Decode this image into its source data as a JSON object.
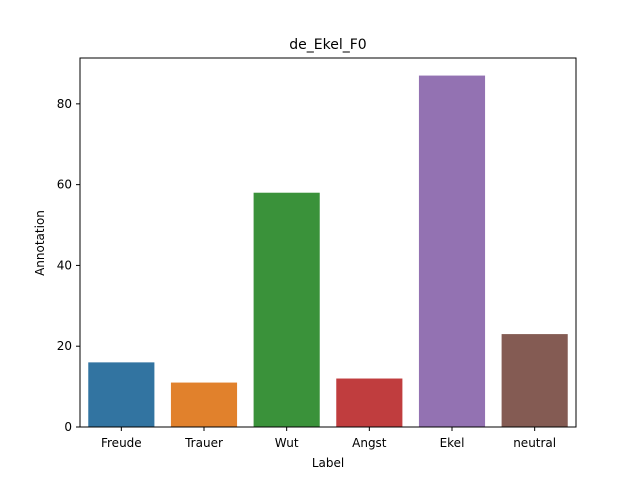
{
  "chart_data": {
    "type": "bar",
    "title": "de_Ekel_F0",
    "xlabel": "Label",
    "ylabel": "Annotation",
    "categories": [
      "Freude",
      "Trauer",
      "Wut",
      "Angst",
      "Ekel",
      "neutral"
    ],
    "values": [
      16,
      11,
      58,
      12,
      87,
      23
    ],
    "colors": [
      "#3274a1",
      "#e1812c",
      "#3a923a",
      "#c03d3e",
      "#9372b2",
      "#845b53"
    ],
    "ylim": [
      0,
      91.35
    ],
    "yticks": [
      0,
      20,
      40,
      60,
      80
    ],
    "grid": false
  }
}
